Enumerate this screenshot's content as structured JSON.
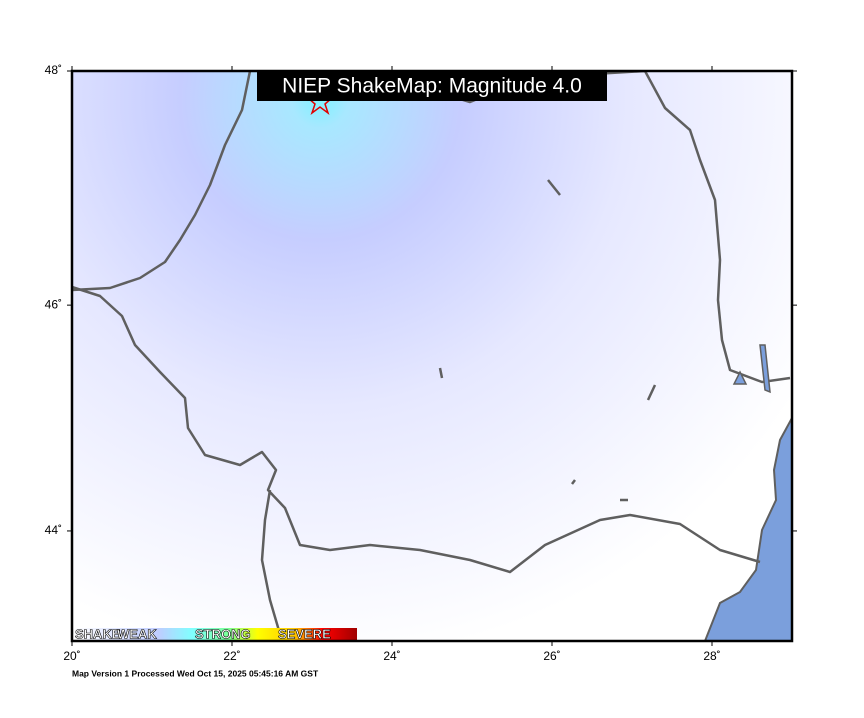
{
  "title": "NIEP ShakeMap: Magnitude 4.0",
  "footer": "Map Version 1 Processed Wed Oct 15, 2025 05:45:16 AM GST",
  "lon_range": [
    20,
    29
  ],
  "lat_range": [
    43,
    48
  ],
  "lon_ticks": [
    {
      "value": 20,
      "label": "20˚"
    },
    {
      "value": 22,
      "label": "22˚"
    },
    {
      "value": 24,
      "label": "24˚"
    },
    {
      "value": 26,
      "label": "26˚"
    },
    {
      "value": 28,
      "label": "28˚"
    }
  ],
  "lat_ticks": [
    {
      "value": 44,
      "label": "44˚"
    },
    {
      "value": 46,
      "label": "46˚"
    },
    {
      "value": 48,
      "label": "48˚"
    }
  ],
  "legend": {
    "labels": [
      "SHAKE",
      "WEAK",
      "STRONG",
      "SEVERE"
    ]
  }
}
